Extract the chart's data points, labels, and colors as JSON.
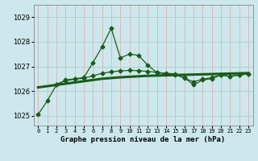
{
  "title": "Graphe pression niveau de la mer (hPa)",
  "background_color": "#cce8ec",
  "grid_color_v": "#e8a0a0",
  "grid_color_h": "#aacccc",
  "line_color": "#1a5c1a",
  "x_labels": [
    "0",
    "1",
    "2",
    "3",
    "4",
    "5",
    "6",
    "7",
    "8",
    "9",
    "10",
    "11",
    "12",
    "13",
    "14",
    "15",
    "16",
    "17",
    "18",
    "19",
    "20",
    "21",
    "22",
    "23"
  ],
  "ylim": [
    1024.6,
    1029.5
  ],
  "yticks": [
    1025,
    1026,
    1027,
    1028,
    1029
  ],
  "series_jagged": [
    1025.05,
    1025.6,
    1026.25,
    1026.45,
    1026.5,
    1026.55,
    1027.15,
    1027.8,
    1028.55,
    1027.35,
    1027.5,
    1027.45,
    1027.05,
    1026.75,
    1026.7,
    1026.65,
    1026.55,
    1026.25,
    1026.45,
    1026.5,
    1026.65,
    1026.6,
    1026.65,
    1026.7
  ],
  "series_smooth": [
    null,
    null,
    1026.28,
    1026.42,
    1026.48,
    1026.52,
    1026.62,
    1026.72,
    1026.78,
    1026.82,
    1026.84,
    1026.83,
    1026.8,
    1026.76,
    1026.72,
    1026.7,
    1026.52,
    1026.38,
    1026.48,
    1026.55,
    1026.65,
    1026.6,
    1026.65,
    1026.7
  ],
  "trend": [
    1026.15,
    1026.2,
    1026.25,
    1026.3,
    1026.35,
    1026.4,
    1026.45,
    1026.5,
    1026.53,
    1026.56,
    1026.58,
    1026.6,
    1026.62,
    1026.63,
    1026.64,
    1026.65,
    1026.66,
    1026.67,
    1026.68,
    1026.69,
    1026.7,
    1026.71,
    1026.72,
    1026.73
  ]
}
